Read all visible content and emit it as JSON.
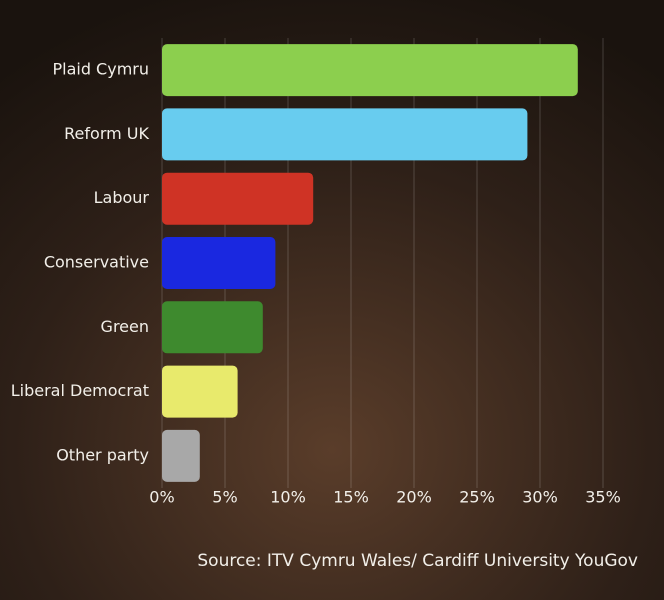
{
  "chart_data": {
    "type": "bar",
    "orientation": "horizontal",
    "categories": [
      "Plaid Cymru",
      "Reform UK",
      "Labour",
      "Conservative",
      "Green",
      "Liberal Democrat",
      "Other party"
    ],
    "values": [
      33,
      29,
      12,
      9,
      8,
      6,
      3
    ],
    "colors": [
      "#8ccf4e",
      "#68ccef",
      "#cf3325",
      "#1a28e0",
      "#3e8a2e",
      "#e8ea6c",
      "#a8a8a8"
    ],
    "xlim": [
      0,
      35
    ],
    "xticks": [
      {
        "value": 0,
        "label": "0%"
      },
      {
        "value": 5,
        "label": "5%"
      },
      {
        "value": 10,
        "label": "10%"
      },
      {
        "value": 15,
        "label": "15%"
      },
      {
        "value": 20,
        "label": "20%"
      },
      {
        "value": 25,
        "label": "25%"
      },
      {
        "value": 30,
        "label": "30%"
      },
      {
        "value": 35,
        "label": "35%"
      }
    ],
    "grid": true,
    "source": "Source: ITV Cymru Wales/ Cardiff University YouGov"
  }
}
